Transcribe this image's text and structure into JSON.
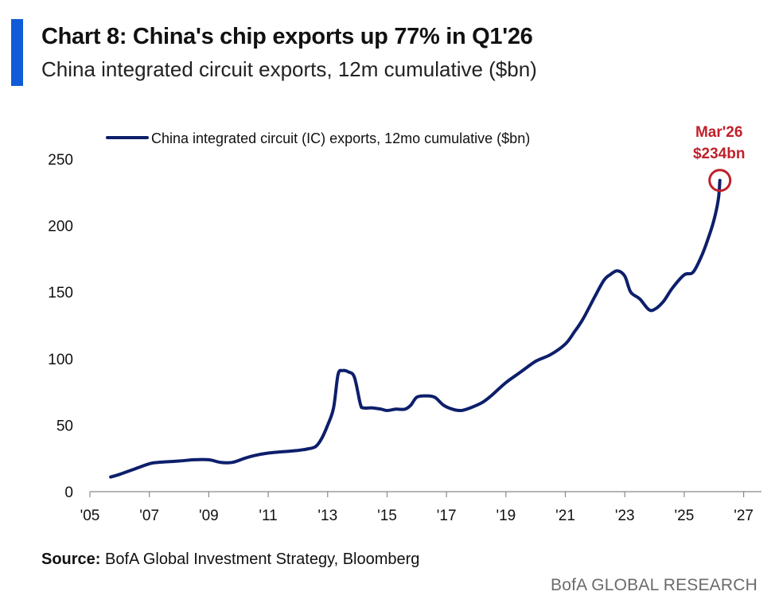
{
  "header": {
    "title": "Chart 8: China's chip exports up 77% in Q1'26",
    "subtitle": "China integrated circuit exports, 12m cumulative ($bn)"
  },
  "footer": {
    "source_label": "Source:",
    "source_text": "BofA Global Investment Strategy, Bloomberg",
    "brand": "BofA GLOBAL RESEARCH"
  },
  "colors": {
    "accent": "#0f5bd8",
    "series": "#0d1f6b",
    "highlight": "#c0202a"
  },
  "chart_data": {
    "type": "line",
    "title": "China integrated circuit exports, 12m cumulative ($bn)",
    "xlabel": "",
    "ylabel": "",
    "xlim": [
      2005,
      2027.6
    ],
    "ylim": [
      0,
      250
    ],
    "yticks": [
      0,
      50,
      100,
      150,
      200,
      250
    ],
    "xticks": [
      {
        "value": 2005,
        "label": "'05"
      },
      {
        "value": 2007,
        "label": "'07"
      },
      {
        "value": 2009,
        "label": "'09"
      },
      {
        "value": 2011,
        "label": "'11"
      },
      {
        "value": 2013,
        "label": "'13"
      },
      {
        "value": 2015,
        "label": "'15"
      },
      {
        "value": 2017,
        "label": "'17"
      },
      {
        "value": 2019,
        "label": "'19"
      },
      {
        "value": 2021,
        "label": "'21"
      },
      {
        "value": 2023,
        "label": "'23"
      },
      {
        "value": 2025,
        "label": "'25"
      },
      {
        "value": 2027,
        "label": "'27"
      }
    ],
    "grid": false,
    "legend_position": "top",
    "series": [
      {
        "name": "China integrated circuit (IC) exports, 12mo cumulative ($bn)",
        "x": [
          2005.7,
          2006.0,
          2006.5,
          2007.0,
          2007.3,
          2008.0,
          2008.5,
          2009.0,
          2009.4,
          2009.8,
          2010.2,
          2010.5,
          2011.0,
          2011.5,
          2012.0,
          2012.3,
          2012.6,
          2012.8,
          2013.0,
          2013.2,
          2013.35,
          2013.5,
          2013.7,
          2013.9,
          2014.1,
          2014.2,
          2014.5,
          2014.8,
          2015.0,
          2015.3,
          2015.6,
          2015.8,
          2016.0,
          2016.3,
          2016.6,
          2016.9,
          2017.2,
          2017.5,
          2017.8,
          2018.2,
          2018.5,
          2019.0,
          2019.5,
          2020.0,
          2020.5,
          2021.0,
          2021.3,
          2021.6,
          2022.0,
          2022.3,
          2022.5,
          2022.75,
          2023.0,
          2023.2,
          2023.5,
          2023.8,
          2024.0,
          2024.3,
          2024.6,
          2025.0,
          2025.3,
          2025.6,
          2025.8,
          2026.0,
          2026.15,
          2026.2
        ]
      }
    ],
    "values": [
      11,
      13,
      17,
      21,
      22,
      23,
      24,
      24,
      22,
      22,
      25,
      27,
      29,
      30,
      31,
      32,
      34,
      40,
      50,
      63,
      88,
      91,
      90,
      86,
      66,
      63,
      63,
      62,
      61,
      62,
      62,
      65,
      71,
      72,
      71,
      65,
      62,
      61,
      63,
      67,
      72,
      82,
      90,
      98,
      103,
      111,
      120,
      130,
      147,
      159,
      163,
      166,
      162,
      150,
      145,
      137,
      137,
      143,
      153,
      163,
      165,
      178,
      190,
      204,
      220,
      234
    ],
    "annotation": {
      "x": 2026.2,
      "y": 234,
      "label_line1": "Mar'26",
      "label_line2": "$234bn"
    }
  }
}
